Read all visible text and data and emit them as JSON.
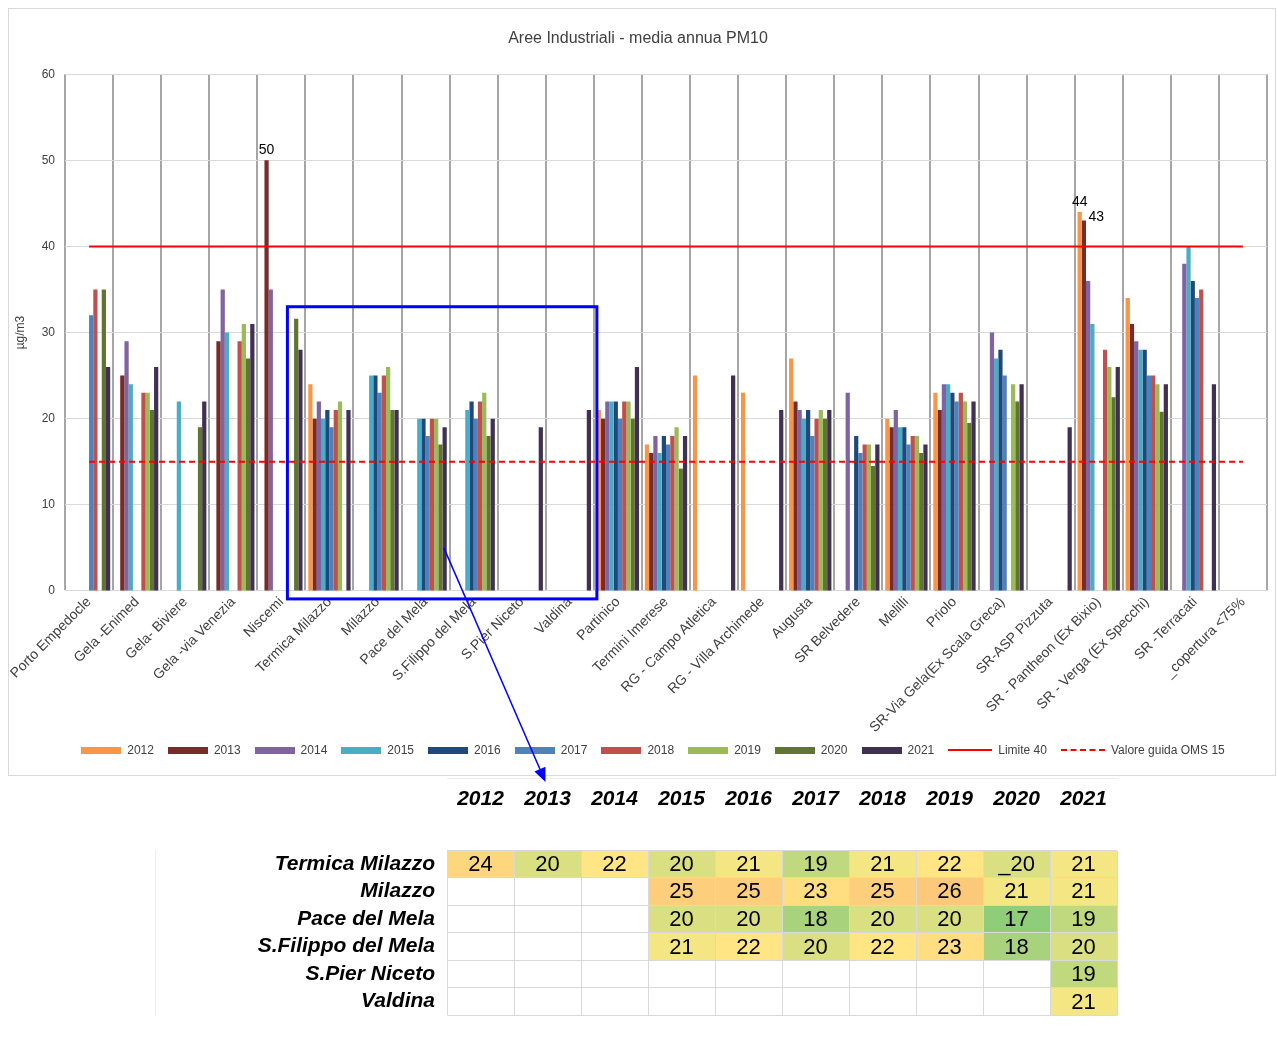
{
  "chart_data": [
    {
      "type": "bar",
      "title": "Aree Industriali - media annua PM10",
      "ylabel": "µg/m3",
      "categories": [
        "Porto Empedocle",
        "Gela -Enimed",
        "Gela- Biviere",
        "Gela -via Venezia",
        "Niscemi",
        "Termica Milazzo",
        "Milazzo",
        "Pace del Mela",
        "S.Filippo del Mela",
        "S.Pier Niceto",
        "Valdina",
        "Partinico",
        "Termini Imerese",
        "RG - Campo Atletica",
        "RG - Villa Archimede",
        "Augusta",
        "SR Belvedere",
        "Melilli",
        "Priolo",
        "SR-Via Gela(Ex Scala Greca)",
        "SR-ASP Pizzuta",
        "SR - Pantheon (Ex Bixio)",
        "SR - Verga (Ex Specchi)",
        "SR -Terracati",
        "_copertura <75%"
      ],
      "series": [
        {
          "name": "2012",
          "color": "#f79646",
          "values": [
            null,
            null,
            null,
            null,
            null,
            24,
            null,
            null,
            null,
            null,
            null,
            21,
            17,
            25,
            23,
            27,
            null,
            20,
            23,
            null,
            null,
            44,
            34,
            null,
            null
          ],
          "value_labels": [
            null,
            null,
            null,
            null,
            null,
            null,
            null,
            null,
            null,
            null,
            null,
            null,
            null,
            null,
            null,
            null,
            null,
            null,
            null,
            null,
            null,
            "44",
            null,
            null,
            null
          ]
        },
        {
          "name": "2013",
          "color": "#772c2a",
          "values": [
            null,
            25,
            null,
            29,
            50,
            20,
            null,
            null,
            null,
            null,
            null,
            20,
            16,
            null,
            null,
            22,
            null,
            19,
            21,
            null,
            null,
            43,
            31,
            null,
            null
          ],
          "value_labels": [
            null,
            null,
            null,
            null,
            "50",
            null,
            null,
            null,
            null,
            null,
            null,
            null,
            null,
            null,
            null,
            null,
            null,
            null,
            null,
            null,
            null,
            "43",
            null,
            null,
            null
          ]
        },
        {
          "name": "2014",
          "color": "#8064a2",
          "values": [
            null,
            29,
            null,
            35,
            35,
            22,
            null,
            null,
            null,
            null,
            null,
            22,
            18,
            null,
            null,
            21,
            23,
            21,
            24,
            30,
            null,
            36,
            29,
            38,
            null
          ]
        },
        {
          "name": "2015",
          "color": "#4bacc6",
          "values": [
            null,
            24,
            22,
            30,
            null,
            20,
            25,
            20,
            21,
            null,
            null,
            22,
            16,
            null,
            null,
            20,
            null,
            19,
            24,
            27,
            null,
            31,
            28,
            40,
            null
          ]
        },
        {
          "name": "2016",
          "color": "#1f497d",
          "values": [
            null,
            null,
            null,
            null,
            null,
            21,
            25,
            20,
            22,
            null,
            null,
            22,
            18,
            null,
            null,
            21,
            18,
            19,
            23,
            28,
            null,
            null,
            28,
            36,
            null
          ]
        },
        {
          "name": "2017",
          "color": "#4f81bd",
          "values": [
            32,
            null,
            null,
            null,
            null,
            19,
            23,
            18,
            20,
            null,
            null,
            20,
            17,
            null,
            null,
            18,
            16,
            17,
            22,
            25,
            null,
            null,
            25,
            34,
            null
          ]
        },
        {
          "name": "2018",
          "color": "#c0504d",
          "values": [
            35,
            23,
            null,
            29,
            null,
            21,
            25,
            20,
            22,
            null,
            null,
            22,
            18,
            null,
            null,
            20,
            17,
            18,
            23,
            null,
            null,
            28,
            25,
            35,
            null
          ]
        },
        {
          "name": "2019",
          "color": "#9bbb59",
          "values": [
            null,
            23,
            null,
            31,
            null,
            22,
            26,
            20,
            23,
            null,
            null,
            22,
            19,
            null,
            null,
            21,
            17,
            18,
            22,
            24,
            null,
            26,
            24,
            null,
            null
          ]
        },
        {
          "name": "2020",
          "color": "#5f7530",
          "values": [
            35,
            21,
            19,
            27,
            31.6,
            null,
            21,
            17,
            18,
            null,
            null,
            20,
            14.2,
            null,
            null,
            20,
            14.5,
            16,
            19.5,
            22,
            null,
            22.5,
            20.8,
            null,
            null
          ]
        },
        {
          "name": "2021",
          "color": "#403152",
          "values": [
            26,
            26,
            22,
            31,
            28,
            21,
            21,
            19,
            20,
            19,
            21,
            26,
            18,
            25,
            21,
            21,
            17,
            17,
            22,
            24,
            19,
            26,
            24,
            24,
            null
          ]
        }
      ],
      "ylim": [
        0,
        60
      ],
      "yticks": [
        0,
        10,
        20,
        30,
        40,
        50,
        60
      ],
      "grid": true,
      "legend": "bottom",
      "ref_lines": [
        {
          "axis": "y",
          "value": 40,
          "label": "Limite 40",
          "color": "#ff0000",
          "line_style": "solid"
        },
        {
          "axis": "y",
          "value": 15,
          "label": "Valore guida OMS 15",
          "color": "#ff0000",
          "line_style": "dashed"
        }
      ]
    },
    {
      "type": "heatmap",
      "categories": [
        "2012",
        "2013",
        "2014",
        "2015",
        "2016",
        "2017",
        "2018",
        "2019",
        "2020",
        "2021"
      ],
      "y_categories": [
        "Termica Milazzo",
        "Milazzo",
        "Pace del Mela",
        "S.Filippo del Mela",
        "S.Pier Niceto",
        "Valdina"
      ],
      "cells": [
        [
          24,
          20,
          22,
          20,
          21,
          19,
          21,
          22,
          20,
          21
        ],
        [
          null,
          null,
          null,
          25,
          25,
          23,
          25,
          26,
          21,
          21
        ],
        [
          null,
          null,
          null,
          20,
          20,
          18,
          20,
          20,
          17,
          19
        ],
        [
          null,
          null,
          null,
          21,
          22,
          20,
          22,
          23,
          18,
          20
        ],
        [
          null,
          null,
          null,
          null,
          null,
          null,
          null,
          null,
          null,
          19
        ],
        [
          null,
          null,
          null,
          null,
          null,
          null,
          null,
          null,
          null,
          21
        ]
      ],
      "cell_labels": [
        [
          "24",
          "20",
          "22",
          "20",
          "21",
          "19",
          "21",
          "22",
          "_20",
          "21"
        ],
        [
          null,
          null,
          null,
          "25",
          "25",
          "23",
          "25",
          "26",
          "21",
          "21"
        ],
        [
          null,
          null,
          null,
          "20",
          "20",
          "18",
          "20",
          "20",
          "17",
          "19"
        ],
        [
          null,
          null,
          null,
          "21",
          "22",
          "20",
          "22",
          "23",
          "18",
          "20"
        ],
        [
          null,
          null,
          null,
          null,
          null,
          null,
          null,
          null,
          null,
          "19"
        ],
        [
          null,
          null,
          null,
          null,
          null,
          null,
          null,
          null,
          null,
          "21"
        ]
      ],
      "data_labels": true,
      "grid": true
    }
  ]
}
